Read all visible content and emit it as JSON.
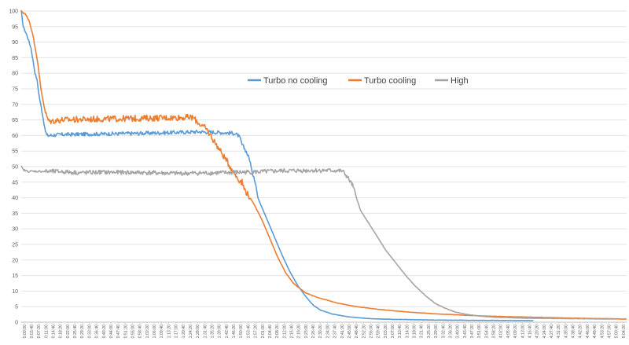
{
  "chart_data": {
    "type": "line",
    "title": "",
    "xlabel": "",
    "ylabel": "",
    "ylim": [
      0,
      100
    ],
    "y_ticks": [
      0,
      5,
      10,
      15,
      20,
      25,
      30,
      35,
      40,
      45,
      50,
      55,
      60,
      65,
      70,
      75,
      80,
      85,
      90,
      95,
      100
    ],
    "x_ticks": [
      "0:00:00",
      "0:03:40",
      "0:07:20",
      "0:11:00",
      "0:14:40",
      "0:18:20",
      "0:22:00",
      "0:25:40",
      "0:29:20",
      "0:33:00",
      "0:36:40",
      "0:40:20",
      "0:44:00",
      "0:47:40",
      "0:51:20",
      "0:55:00",
      "0:58:40",
      "1:02:20",
      "1:06:00",
      "1:09:40",
      "1:13:20",
      "1:17:00",
      "1:20:40",
      "1:24:20",
      "1:28:00",
      "1:31:40",
      "1:35:20",
      "1:39:00",
      "1:42:40",
      "1:46:20",
      "1:50:00",
      "1:53:40",
      "1:57:20",
      "2:01:00",
      "2:04:40",
      "2:08:20",
      "2:12:00",
      "2:15:40",
      "2:19:20",
      "2:23:00",
      "2:26:40",
      "2:30:20",
      "2:34:00",
      "2:37:40",
      "2:41:20",
      "2:45:00",
      "2:48:40",
      "2:52:20",
      "2:56:00",
      "2:59:40",
      "3:03:20",
      "3:07:00",
      "3:10:40",
      "3:14:20",
      "3:18:00",
      "3:21:40",
      "3:25:20",
      "3:29:00",
      "3:32:40",
      "3:36:20",
      "3:40:00",
      "3:43:40",
      "3:47:20",
      "3:51:00",
      "3:54:40",
      "3:58:20",
      "4:02:00",
      "4:05:40",
      "4:09:20",
      "4:13:00",
      "4:16:40",
      "4:20:20",
      "4:24:00",
      "4:27:40",
      "4:31:20",
      "4:35:00",
      "4:38:40",
      "4:42:20",
      "4:46:00",
      "4:49:40",
      "4:53:20",
      "4:57:00",
      "5:00:40",
      "5:04:20"
    ],
    "x_unit": "minutes",
    "x_max": 307,
    "legend_position": "center",
    "grid": true,
    "series": [
      {
        "name": "Turbo no cooling",
        "color": "#5B9BD5",
        "noise": 0.6,
        "points": [
          [
            0,
            100
          ],
          [
            1,
            95
          ],
          [
            3,
            92
          ],
          [
            5,
            88
          ],
          [
            7,
            80
          ],
          [
            8,
            78
          ],
          [
            9,
            73
          ],
          [
            11,
            66
          ],
          [
            12,
            62
          ],
          [
            13,
            60
          ],
          [
            14,
            60
          ],
          [
            20,
            60.3
          ],
          [
            40,
            60.5
          ],
          [
            60,
            60.7
          ],
          [
            80,
            61
          ],
          [
            90,
            61.2
          ],
          [
            100,
            61
          ],
          [
            108,
            60.7
          ],
          [
            110,
            60
          ],
          [
            111,
            59
          ],
          [
            112,
            57
          ],
          [
            114,
            55
          ],
          [
            116,
            52
          ],
          [
            117,
            48
          ],
          [
            118,
            47
          ],
          [
            119,
            44
          ],
          [
            120,
            40
          ],
          [
            124,
            34
          ],
          [
            128,
            28
          ],
          [
            132,
            22
          ],
          [
            136,
            16.5
          ],
          [
            140,
            12
          ],
          [
            144,
            8.5
          ],
          [
            148,
            5.5
          ],
          [
            152,
            3.8
          ],
          [
            158,
            2.6
          ],
          [
            165,
            1.8
          ],
          [
            175,
            1.2
          ],
          [
            190,
            0.9
          ],
          [
            210,
            0.7
          ],
          [
            230,
            0.6
          ],
          [
            260,
            0.5
          ]
        ]
      },
      {
        "name": "Turbo cooling",
        "color": "#ED7D31",
        "noise": 1.0,
        "points": [
          [
            0,
            100
          ],
          [
            2,
            99
          ],
          [
            4,
            97
          ],
          [
            6,
            92
          ],
          [
            8,
            85
          ],
          [
            10,
            75
          ],
          [
            12,
            68
          ],
          [
            13,
            66
          ],
          [
            14,
            64.5
          ],
          [
            20,
            65
          ],
          [
            40,
            65.3
          ],
          [
            60,
            65.5
          ],
          [
            80,
            65.8
          ],
          [
            87,
            65.8
          ],
          [
            90,
            64
          ],
          [
            94,
            62
          ],
          [
            98,
            58
          ],
          [
            100,
            56
          ],
          [
            104,
            52
          ],
          [
            106,
            50
          ],
          [
            108,
            48
          ],
          [
            110,
            46
          ],
          [
            112,
            45
          ],
          [
            113,
            43
          ],
          [
            114,
            42
          ],
          [
            118,
            38
          ],
          [
            122,
            33
          ],
          [
            126,
            27
          ],
          [
            130,
            21
          ],
          [
            134,
            16
          ],
          [
            138,
            12.5
          ],
          [
            144,
            9.5
          ],
          [
            150,
            8
          ],
          [
            160,
            6.2
          ],
          [
            170,
            5
          ],
          [
            180,
            4.2
          ],
          [
            190,
            3.6
          ],
          [
            200,
            3.1
          ],
          [
            210,
            2.7
          ],
          [
            220,
            2.4
          ],
          [
            230,
            2.1
          ],
          [
            245,
            1.8
          ],
          [
            260,
            1.6
          ],
          [
            280,
            1.3
          ],
          [
            300,
            1.1
          ],
          [
            307,
            1.0
          ]
        ]
      },
      {
        "name": "High",
        "color": "#A5A5A5",
        "noise": 0.7,
        "points": [
          [
            0,
            50
          ],
          [
            1,
            49
          ],
          [
            3,
            48.5
          ],
          [
            20,
            48.4
          ],
          [
            30,
            48
          ],
          [
            40,
            48.2
          ],
          [
            60,
            48.1
          ],
          [
            80,
            47.8
          ],
          [
            100,
            48
          ],
          [
            120,
            48.3
          ],
          [
            130,
            48.6
          ],
          [
            150,
            48.8
          ],
          [
            160,
            48.7
          ],
          [
            163,
            48.5
          ],
          [
            165,
            47
          ],
          [
            168,
            44
          ],
          [
            170,
            40
          ],
          [
            172,
            36
          ],
          [
            176,
            32
          ],
          [
            180,
            28
          ],
          [
            185,
            23
          ],
          [
            190,
            19
          ],
          [
            195,
            15
          ],
          [
            200,
            11.5
          ],
          [
            205,
            8.5
          ],
          [
            210,
            6
          ],
          [
            215,
            4.5
          ],
          [
            220,
            3.3
          ],
          [
            225,
            2.6
          ],
          [
            232,
            2
          ],
          [
            240,
            1.6
          ],
          [
            255,
            1.3
          ],
          [
            270,
            1.2
          ],
          [
            285,
            1.1
          ],
          [
            300,
            1.0
          ]
        ]
      }
    ]
  }
}
